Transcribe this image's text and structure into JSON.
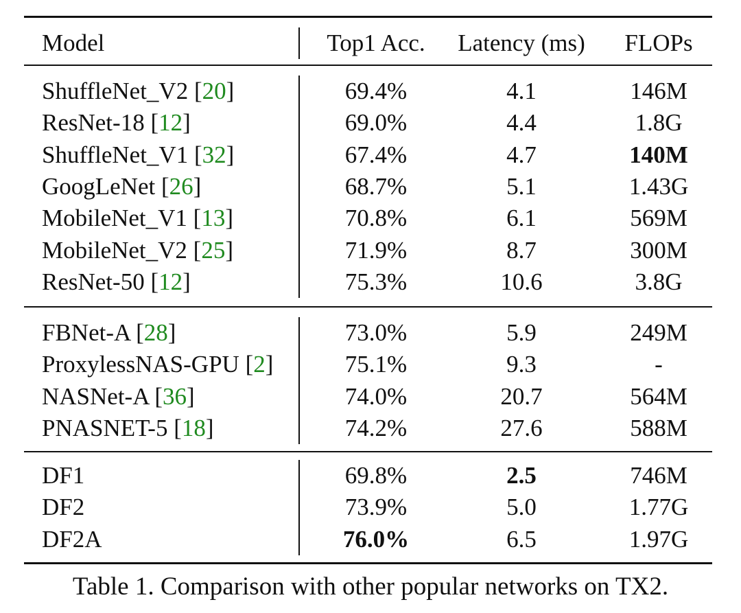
{
  "table": {
    "headers": {
      "model": "Model",
      "acc": "Top1 Acc.",
      "latency": "Latency (ms)",
      "flops": "FLOPs"
    },
    "groups": [
      {
        "rows": [
          {
            "model": "ShuffleNet_V2",
            "ref": "20",
            "acc": "69.4%",
            "latency": "4.1",
            "flops": "146M"
          },
          {
            "model": "ResNet-18",
            "ref": "12",
            "acc": "69.0%",
            "latency": "4.4",
            "flops": "1.8G"
          },
          {
            "model": "ShuffleNet_V1",
            "ref": "32",
            "acc": "67.4%",
            "latency": "4.7",
            "flops": "140M",
            "bold": "flops"
          },
          {
            "model": "GoogLeNet",
            "ref": "26",
            "acc": "68.7%",
            "latency": "5.1",
            "flops": "1.43G"
          },
          {
            "model": "MobileNet_V1",
            "ref": "13",
            "acc": "70.8%",
            "latency": "6.1",
            "flops": "569M"
          },
          {
            "model": "MobileNet_V2",
            "ref": "25",
            "acc": "71.9%",
            "latency": "8.7",
            "flops": "300M"
          },
          {
            "model": "ResNet-50",
            "ref": "12",
            "acc": "75.3%",
            "latency": "10.6",
            "flops": "3.8G"
          }
        ]
      },
      {
        "rows": [
          {
            "model": "FBNet-A",
            "ref": "28",
            "acc": "73.0%",
            "latency": "5.9",
            "flops": "249M"
          },
          {
            "model": "ProxylessNAS-GPU",
            "ref": "2",
            "acc": "75.1%",
            "latency": "9.3",
            "flops": "-"
          },
          {
            "model": "NASNet-A",
            "ref": "36",
            "acc": "74.0%",
            "latency": "20.7",
            "flops": "564M"
          },
          {
            "model": "PNASNET-5",
            "ref": "18",
            "acc": "74.2%",
            "latency": "27.6",
            "flops": "588M"
          }
        ]
      },
      {
        "rows": [
          {
            "model": "DF1",
            "ref": "",
            "acc": "69.8%",
            "latency": "2.5",
            "flops": "746M",
            "bold": "latency"
          },
          {
            "model": "DF2",
            "ref": "",
            "acc": "73.9%",
            "latency": "5.0",
            "flops": "1.77G"
          },
          {
            "model": "DF2A",
            "ref": "",
            "acc": "76.0%",
            "latency": "6.5",
            "flops": "1.97G",
            "bold": "acc"
          }
        ]
      }
    ]
  },
  "caption": "Table 1. Comparison with other popular networks on TX2."
}
